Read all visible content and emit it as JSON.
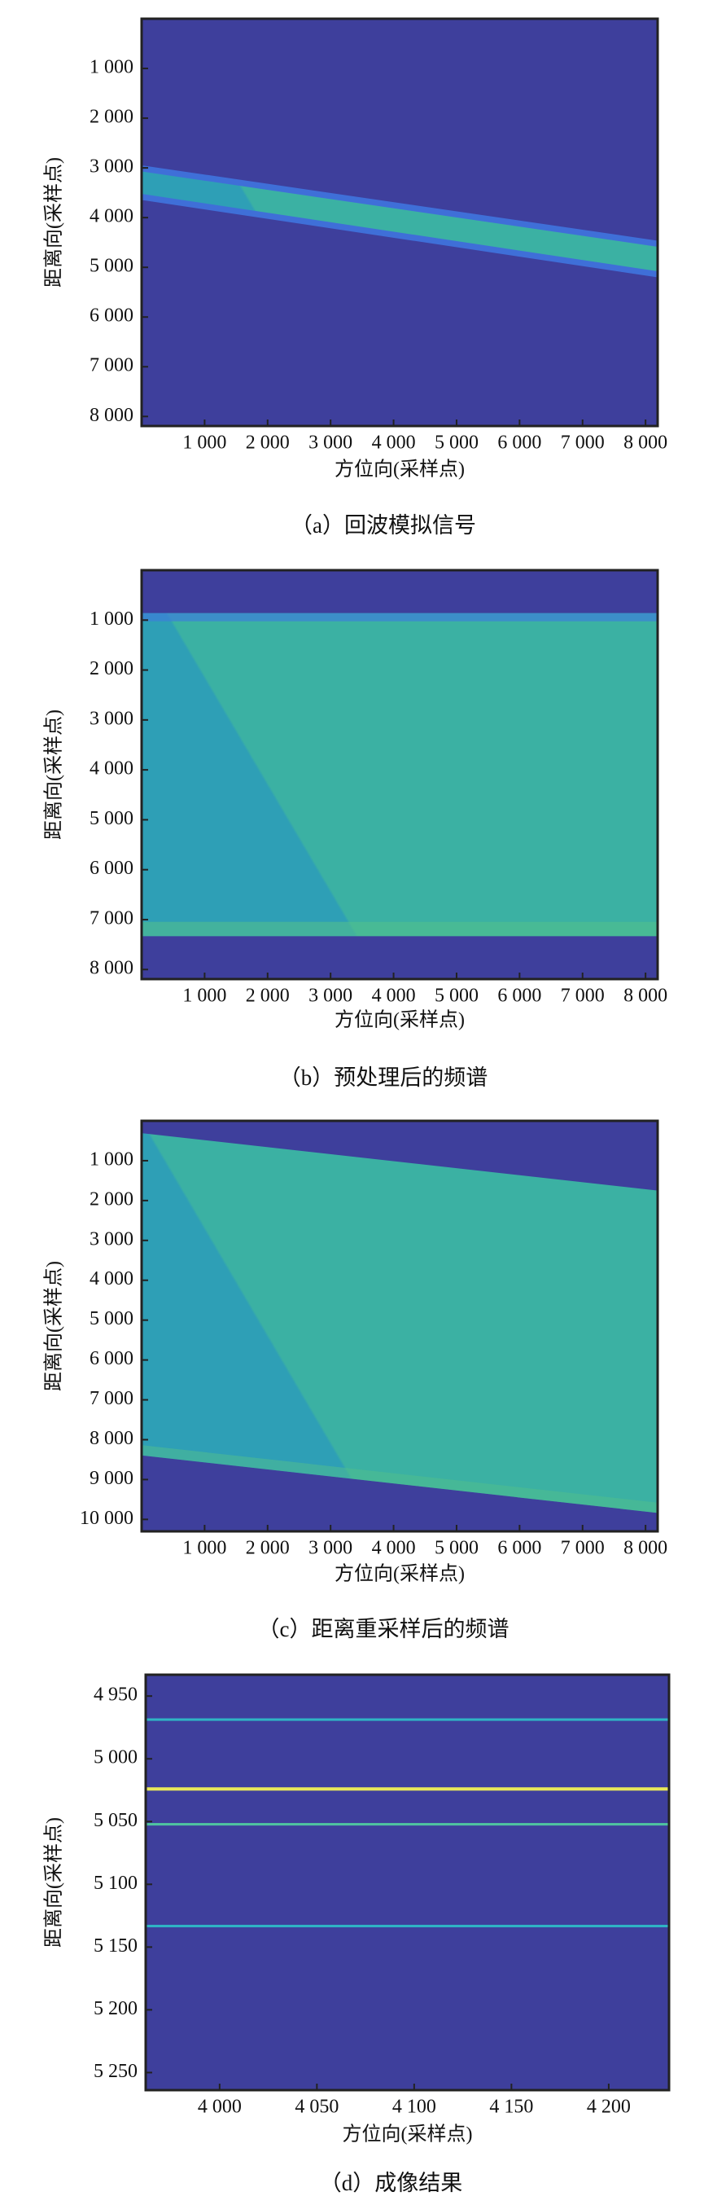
{
  "chart_data": [
    {
      "type": "heatmap",
      "caption": "（a）回波模拟信号",
      "x_label": "方位向(采样点)",
      "y_label": "距离向(采样点)",
      "xlim": [
        0,
        8192
      ],
      "ylim": [
        0,
        8192
      ],
      "y_reversed": true,
      "xticks": [
        {
          "value": 1000,
          "label": "1 000"
        },
        {
          "value": 2000,
          "label": "2 000"
        },
        {
          "value": 3000,
          "label": "3 000"
        },
        {
          "value": 4000,
          "label": "4 000"
        },
        {
          "value": 5000,
          "label": "5 000"
        },
        {
          "value": 6000,
          "label": "6 000"
        },
        {
          "value": 7000,
          "label": "7 000"
        },
        {
          "value": 8000,
          "label": "8 000"
        }
      ],
      "yticks": [
        {
          "value": 1000,
          "label": "1 000"
        },
        {
          "value": 2000,
          "label": "2 000"
        },
        {
          "value": 3000,
          "label": "3 000"
        },
        {
          "value": 4000,
          "label": "4 000"
        },
        {
          "value": 5000,
          "label": "5 000"
        },
        {
          "value": 6000,
          "label": "6 000"
        },
        {
          "value": 7000,
          "label": "7 000"
        },
        {
          "value": 8000,
          "label": "8 000"
        }
      ]
    },
    {
      "type": "heatmap",
      "caption": "（b）预处理后的频谱",
      "x_label": "方位向(采样点)",
      "y_label": "距离向(采样点)",
      "xlim": [
        0,
        8192
      ],
      "ylim": [
        0,
        8192
      ],
      "y_reversed": true,
      "xticks": [
        {
          "value": 1000,
          "label": "1 000"
        },
        {
          "value": 2000,
          "label": "2 000"
        },
        {
          "value": 3000,
          "label": "3 000"
        },
        {
          "value": 4000,
          "label": "4 000"
        },
        {
          "value": 5000,
          "label": "5 000"
        },
        {
          "value": 6000,
          "label": "6 000"
        },
        {
          "value": 7000,
          "label": "7 000"
        },
        {
          "value": 8000,
          "label": "8 000"
        }
      ],
      "yticks": [
        {
          "value": 1000,
          "label": "1 000"
        },
        {
          "value": 2000,
          "label": "2 000"
        },
        {
          "value": 3000,
          "label": "3 000"
        },
        {
          "value": 4000,
          "label": "4 000"
        },
        {
          "value": 5000,
          "label": "5 000"
        },
        {
          "value": 6000,
          "label": "6 000"
        },
        {
          "value": 7000,
          "label": "7 000"
        },
        {
          "value": 8000,
          "label": "8 000"
        }
      ]
    },
    {
      "type": "heatmap",
      "caption": "（c）距离重采样后的频谱",
      "x_label": "方位向(采样点)",
      "y_label": "距离向(采样点)",
      "xlim": [
        0,
        8192
      ],
      "ylim": [
        0,
        10300
      ],
      "y_reversed": true,
      "xticks": [
        {
          "value": 1000,
          "label": "1 000"
        },
        {
          "value": 2000,
          "label": "2 000"
        },
        {
          "value": 3000,
          "label": "3 000"
        },
        {
          "value": 4000,
          "label": "4 000"
        },
        {
          "value": 5000,
          "label": "5 000"
        },
        {
          "value": 6000,
          "label": "6 000"
        },
        {
          "value": 7000,
          "label": "7 000"
        },
        {
          "value": 8000,
          "label": "8 000"
        }
      ],
      "yticks": [
        {
          "value": 1000,
          "label": "1 000"
        },
        {
          "value": 2000,
          "label": "2 000"
        },
        {
          "value": 3000,
          "label": "3 000"
        },
        {
          "value": 4000,
          "label": "4 000"
        },
        {
          "value": 5000,
          "label": "5 000"
        },
        {
          "value": 6000,
          "label": "6 000"
        },
        {
          "value": 7000,
          "label": "7 000"
        },
        {
          "value": 8000,
          "label": "8 000"
        },
        {
          "value": 9000,
          "label": "9 000"
        },
        {
          "value": 10000,
          "label": "10 000"
        }
      ]
    },
    {
      "type": "heatmap",
      "caption": "（d）成像结果",
      "x_label": "方位向(采样点)",
      "y_label": "距离向(采样点)",
      "xlim": [
        3962,
        4231
      ],
      "ylim": [
        4933,
        5264
      ],
      "y_reversed": true,
      "xticks": [
        {
          "value": 4000,
          "label": "4 000"
        },
        {
          "value": 4050,
          "label": "4 050"
        },
        {
          "value": 4100,
          "label": "4 100"
        },
        {
          "value": 4150,
          "label": "4 150"
        },
        {
          "value": 4200,
          "label": "4 200"
        }
      ],
      "yticks": [
        {
          "value": 4950,
          "label": "4 950"
        },
        {
          "value": 5000,
          "label": "5 000"
        },
        {
          "value": 5050,
          "label": "5 050"
        },
        {
          "value": 5100,
          "label": "5 100"
        },
        {
          "value": 5150,
          "label": "5 150"
        },
        {
          "value": 5200,
          "label": "5 200"
        },
        {
          "value": 5250,
          "label": "5 250"
        }
      ]
    }
  ]
}
